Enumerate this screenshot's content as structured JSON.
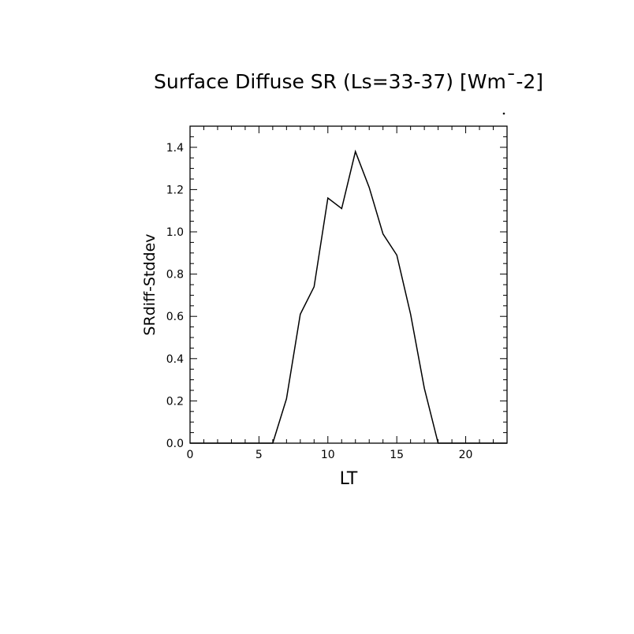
{
  "chart_data": {
    "type": "line",
    "title": "Surface Diffuse SR (Ls=33-37) [Wm¯-2]",
    "xlabel": "LT",
    "ylabel": "SRdiff-Stddev",
    "xlim": [
      0,
      23
    ],
    "ylim": [
      0,
      1.5
    ],
    "xticks": [
      "0",
      "5",
      "10",
      "15",
      "20"
    ],
    "yticks": [
      "0.0",
      "0.2",
      "0.4",
      "0.6",
      "0.8",
      "1.0",
      "1.2",
      "1.4"
    ],
    "grid": false,
    "series": [
      {
        "x": [
          0,
          1,
          2,
          3,
          4,
          5,
          6,
          7,
          8,
          9,
          10,
          11,
          12,
          13,
          14,
          15,
          16,
          17,
          18,
          19,
          20,
          21,
          22,
          23
        ],
        "y": [
          0,
          0,
          0,
          0,
          0,
          0,
          0,
          0.21,
          0.61,
          0.74,
          1.16,
          1.11,
          1.38,
          1.21,
          0.99,
          0.89,
          0.61,
          0.26,
          0,
          0,
          0,
          0,
          0,
          0
        ]
      }
    ]
  }
}
